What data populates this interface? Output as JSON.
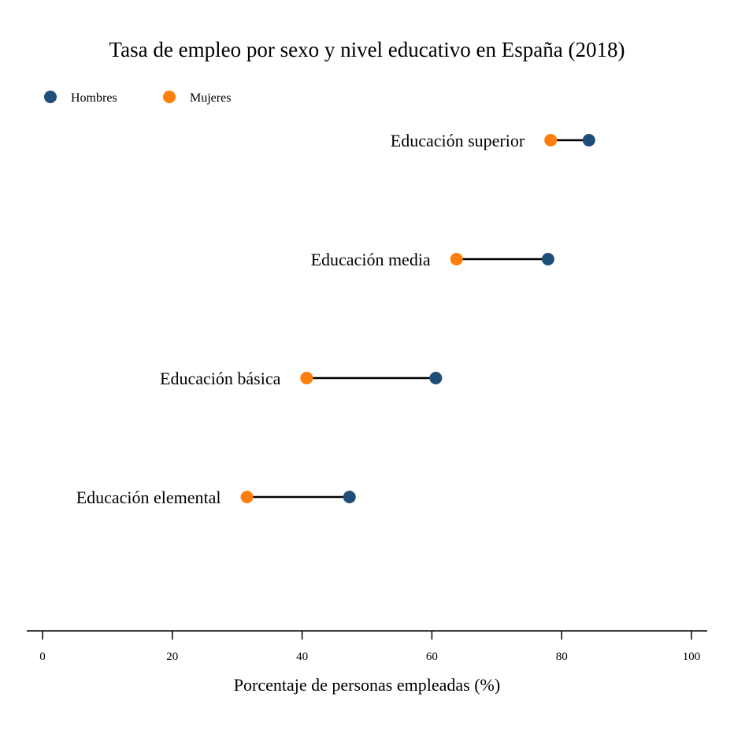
{
  "chart_data": {
    "type": "dumbbell",
    "title": "Tasa de empleo por sexo y nivel educativo en España (2018)",
    "xlabel": "Porcentaje de personas empleadas (%)",
    "ylabel": "",
    "xlim": [
      0,
      100
    ],
    "xticks": [
      0,
      20,
      40,
      60,
      80,
      100
    ],
    "grid": false,
    "legend_position": "top-left",
    "categories": [
      "Educación superior",
      "Educación media",
      "Educación básica",
      "Educación elemental"
    ],
    "series": [
      {
        "name": "Hombres",
        "color": "#1f4e79",
        "values": [
          84.2,
          77.9,
          60.6,
          47.3
        ]
      },
      {
        "name": "Mujeres",
        "color": "#ff7f0e",
        "values": [
          78.3,
          63.8,
          40.7,
          31.5
        ]
      }
    ],
    "connector_color": "#000000"
  }
}
